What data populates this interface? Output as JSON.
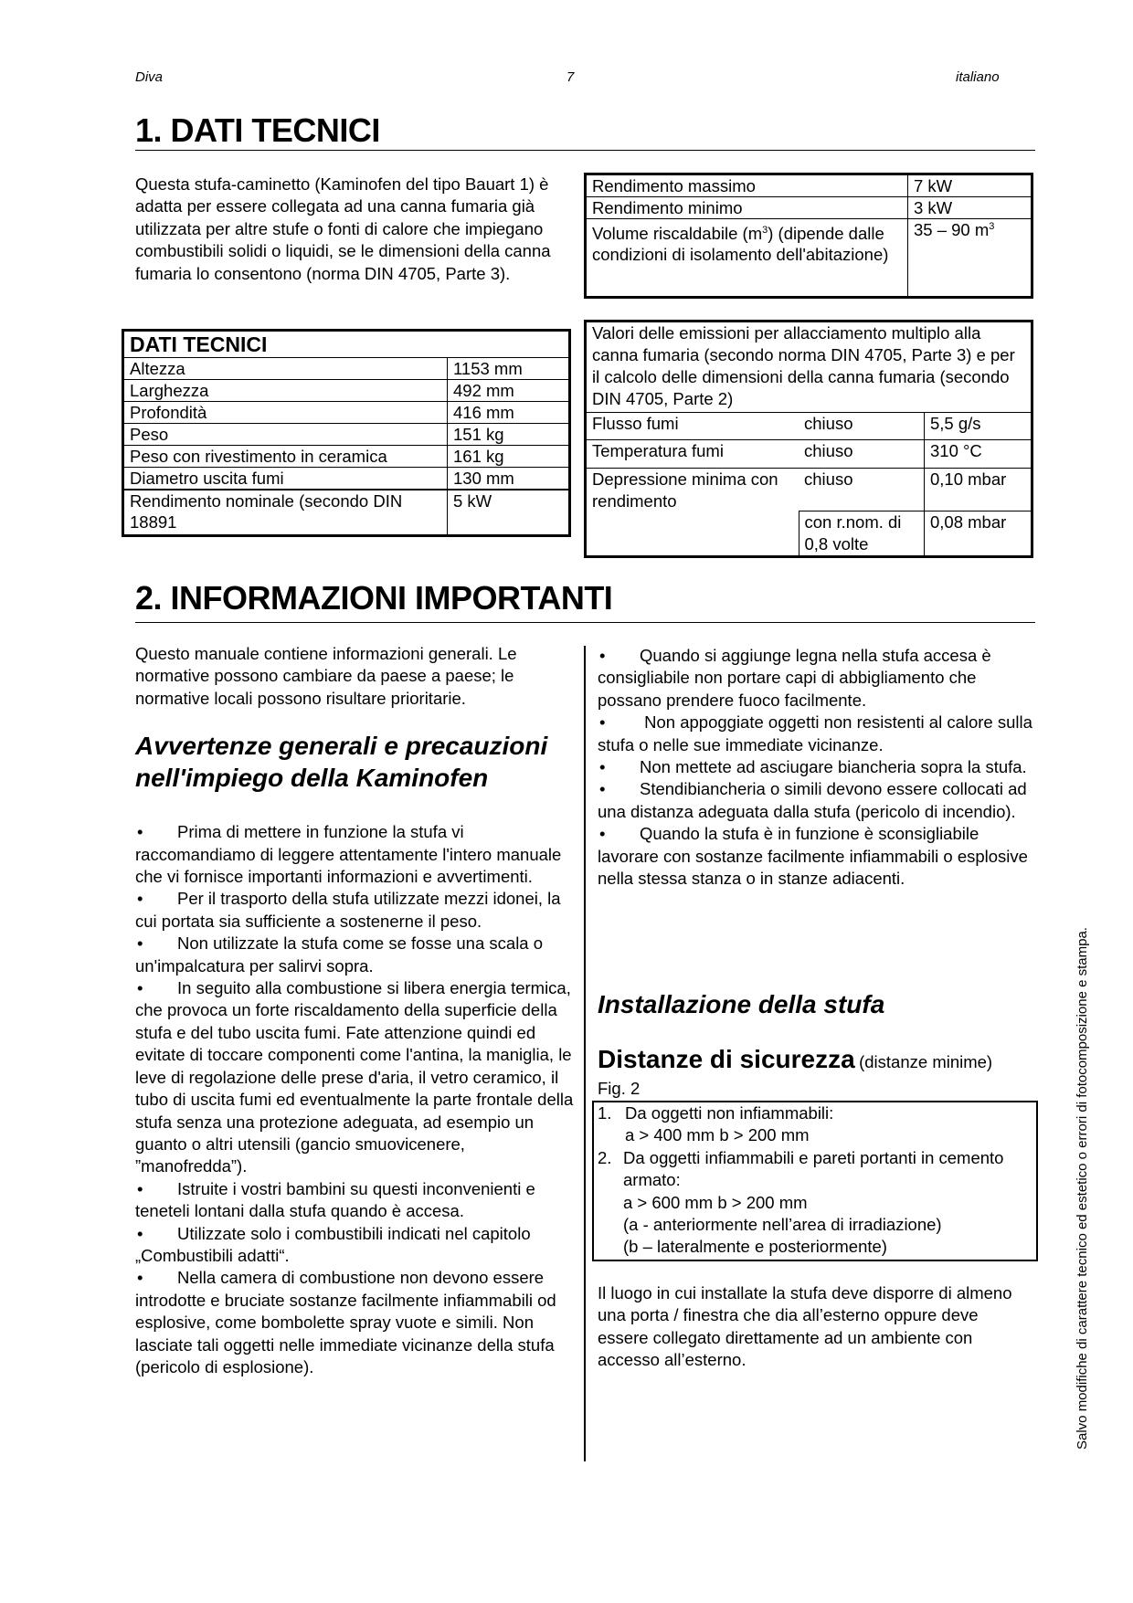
{
  "header": {
    "left": "Diva",
    "page": "7",
    "right": "italiano"
  },
  "section1": {
    "title": "1. DATI TECNICI",
    "intro": "Questa stufa-caminetto (Kaminofen del tipo Bauart 1) è adatta per essere collegata ad una canna fumaria già utilizzata per altre stufe o fonti di calore che impiegano combustibili solidi o liquidi, se le dimensioni della canna fumaria lo consentono (norma DIN 4705, Parte 3).",
    "tech_table": {
      "title": "DATI TECNICI",
      "rows": [
        {
          "label": "Altezza",
          "value": "1153 mm"
        },
        {
          "label": "Larghezza",
          "value": "492 mm"
        },
        {
          "label": "Profondità",
          "value": "416 mm"
        },
        {
          "label": "Peso",
          "value": "151 kg"
        },
        {
          "label": "Peso con rivestimento in ceramica",
          "value": "161 kg"
        },
        {
          "label": "Diametro uscita fumi",
          "value": "130 mm"
        },
        {
          "label": "Rendimento nominale (secondo DIN 18891",
          "value": "5 kW"
        }
      ]
    },
    "power_table": {
      "rows": [
        {
          "label": "Rendimento massimo",
          "value": "7 kW"
        },
        {
          "label": "Rendimento minimo",
          "value": "3 kW"
        }
      ],
      "volume_label_a": "Volume riscaldabile (m",
      "volume_sup": "3",
      "volume_label_b": ") (dipende dalle condizioni di isolamento dell'abitazione)",
      "volume_value": "35 – 90 m",
      "volume_value_sup": "3"
    },
    "emission_table": {
      "header": "Valori delle emissioni per allacciamento multiplo alla canna fumaria (secondo norma DIN 4705, Parte 3) e per il calcolo delle dimensioni della canna fumaria (secondo DIN 4705, Parte 2)",
      "rows": [
        {
          "label": "Flusso  fumi",
          "cond": "chiuso",
          "value": "5,5 g/s"
        },
        {
          "label": "Temperatura fumi",
          "cond": "chiuso",
          "value": "310 °C"
        },
        {
          "label": "Depressione minima con rendimento",
          "cond": "chiuso",
          "value": "0,10 mbar"
        },
        {
          "cond": "con r.nom. di 0,8 volte",
          "value": "0,08 mbar"
        }
      ]
    }
  },
  "section2": {
    "title": "2. INFORMAZIONI IMPORTANTI",
    "intro": "Questo manuale contiene informazioni generali. Le normative possono cambiare da paese a paese; le normative locali possono risultare prioritarie.",
    "warnings_heading": "Avvertenze generali e precauzioni nell'impiego della Kaminofen",
    "bullets_left": [
      "Prima di mettere in funzione la stufa vi raccomandiamo di leggere attentamente l'intero manuale che vi fornisce importanti informazioni e avvertimenti.",
      "Per il trasporto della stufa utilizzate mezzi idonei, la cui portata sia sufficiente a sostenerne il peso.",
      "Non utilizzate la stufa come se fosse una scala o un'impalcatura per salirvi sopra.",
      "In seguito alla combustione si libera energia termica, che provoca un forte riscaldamento della superficie della stufa e del tubo uscita fumi. Fate attenzione quindi ed evitate di toccare componenti come l'antina, la maniglia, le leve di regolazione delle prese d'aria, il vetro ceramico, il tubo di uscita fumi ed eventualmente la parte frontale della stufa senza una protezione adeguata, ad esempio un guanto o altri utensili (gancio smuovicenere, ”manofredda”).",
      "Istruite i vostri bambini su questi inconvenienti e teneteli lontani dalla stufa quando è accesa.",
      "Utilizzate solo i combustibili indicati nel capitolo „Combustibili adatti“.",
      "Nella camera di combustione non devono essere introdotte e bruciate sostanze facilmente infiammabili od esplosive, come bombolette spray vuote e simili. Non lasciate tali oggetti nelle immediate vicinanze della stufa (pericolo di esplosione)."
    ],
    "bullets_right": [
      "Quando si aggiunge legna nella stufa accesa è consigliabile non portare capi di abbigliamento che possano prendere fuoco facilmente.",
      " Non appoggiate oggetti non resistenti al calore sulla stufa o nelle sue immediate vicinanze.",
      "Non mettete ad asciugare biancheria sopra la stufa.",
      "Stendibiancheria o simili devono essere collocati ad una distanza adeguata dalla stufa (pericolo di incendio).",
      "Quando la stufa è in funzione è sconsigliabile lavorare con sostanze facilmente infiammabili o esplosive nella stessa stanza o in stanze adiacenti."
    ],
    "bullet_symbol": "•",
    "install_heading": "Installazione della stufa",
    "distances_heading": "Distanze di sicurezza",
    "distances_note": "(distanze minime)",
    "fig_label": "Fig. 2",
    "distances_box": [
      {
        "num": "1.",
        "lines": [
          "Da oggetti non infiammabili:",
          "a > 400 mm  b > 200 mm"
        ]
      },
      {
        "num": "2.",
        "lines": [
          "Da oggetti infiammabili e pareti portanti in cemento armato:",
          "a > 600 mm b > 200 mm",
          "(a - anteriormente nell’area di irradiazione)",
          "(b – lateralmente e posteriormente)"
        ]
      }
    ],
    "closing": "Il luogo in cui installate la stufa deve disporre di almeno una porta / finestra che dia all’esterno oppure deve essere collegato direttamente ad un ambiente con accesso all’esterno."
  },
  "side_note": "Salvo modifiche di carattere tecnico ed estetico o errori di fotocomposizione e stampa."
}
